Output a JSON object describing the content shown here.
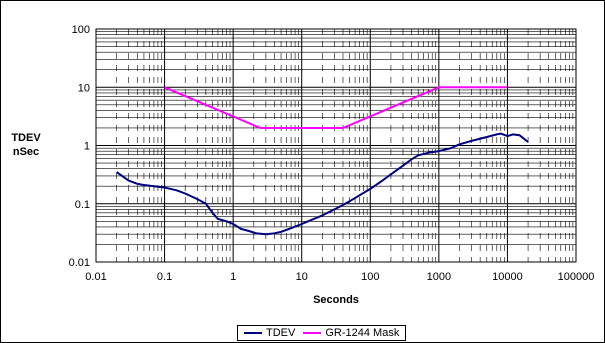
{
  "chart_data": {
    "type": "line",
    "title": "",
    "xlabel": "Seconds",
    "ylabel_lines": [
      "TDEV",
      "nSec"
    ],
    "x_scale": "log",
    "y_scale": "log",
    "xlim": [
      0.01,
      100000
    ],
    "ylim": [
      0.01,
      100
    ],
    "x_ticks": [
      "0.01",
      "0.1",
      "1",
      "10",
      "100",
      "1000",
      "10000",
      "100000"
    ],
    "y_ticks": [
      "100",
      "10",
      "1",
      "0.1",
      "0.01"
    ],
    "grid": true,
    "legend_position": "bottom",
    "series": [
      {
        "name": "TDEV",
        "color": "#000080",
        "x": [
          0.02,
          0.03,
          0.04,
          0.05,
          0.07,
          0.1,
          0.15,
          0.2,
          0.3,
          0.4,
          0.5,
          0.6,
          0.8,
          1.0,
          1.3,
          1.7,
          2.2,
          3,
          4,
          5,
          7,
          10,
          15,
          20,
          30,
          40,
          50,
          70,
          100,
          150,
          200,
          300,
          400,
          500,
          700,
          1000,
          1500,
          2000,
          3000,
          5000,
          7000,
          8000,
          10000,
          12000,
          15000,
          20000
        ],
        "y": [
          0.35,
          0.25,
          0.22,
          0.21,
          0.2,
          0.19,
          0.17,
          0.15,
          0.12,
          0.1,
          0.07,
          0.055,
          0.05,
          0.045,
          0.037,
          0.034,
          0.031,
          0.03,
          0.031,
          0.033,
          0.038,
          0.045,
          0.055,
          0.063,
          0.08,
          0.095,
          0.11,
          0.14,
          0.18,
          0.25,
          0.32,
          0.45,
          0.58,
          0.68,
          0.75,
          0.8,
          0.9,
          1.05,
          1.2,
          1.4,
          1.55,
          1.6,
          1.45,
          1.55,
          1.5,
          1.15
        ]
      },
      {
        "name": "GR-1244 Mask",
        "color": "#ff00ff",
        "x": [
          0.1,
          2.5,
          40,
          1000,
          10000
        ],
        "y": [
          10,
          2,
          2,
          10,
          10
        ]
      }
    ]
  }
}
